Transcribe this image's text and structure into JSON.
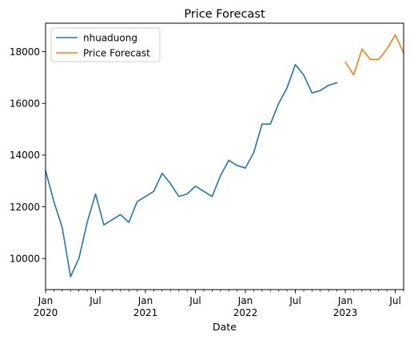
{
  "chart_data": {
    "type": "line",
    "title": "Price Forecast",
    "xlabel": "Date",
    "ylabel": "",
    "x_range": [
      "2020-01",
      "2023-08"
    ],
    "ylim": [
      8800,
      19100
    ],
    "grid": false,
    "legend_position": "top-left",
    "x_ticks": [
      {
        "date": "2020-01",
        "label": "Jan",
        "sublabel": "2020"
      },
      {
        "date": "2020-07",
        "label": "Jul",
        "sublabel": ""
      },
      {
        "date": "2021-01",
        "label": "Jan",
        "sublabel": "2021"
      },
      {
        "date": "2021-07",
        "label": "Jul",
        "sublabel": ""
      },
      {
        "date": "2022-01",
        "label": "Jan",
        "sublabel": "2022"
      },
      {
        "date": "2022-07",
        "label": "Jul",
        "sublabel": ""
      },
      {
        "date": "2023-01",
        "label": "Jan",
        "sublabel": "2023"
      },
      {
        "date": "2023-07",
        "label": "Jul",
        "sublabel": ""
      }
    ],
    "y_ticks": [
      10000,
      12000,
      14000,
      16000,
      18000
    ],
    "series": [
      {
        "name": "nhuaduong",
        "color": "#1f77b4",
        "points": [
          {
            "x": "2020-01",
            "y": 13400
          },
          {
            "x": "2020-02",
            "y": 12200
          },
          {
            "x": "2020-03",
            "y": 11200
          },
          {
            "x": "2020-04",
            "y": 9300
          },
          {
            "x": "2020-05",
            "y": 10000
          },
          {
            "x": "2020-06",
            "y": 11400
          },
          {
            "x": "2020-07",
            "y": 12500
          },
          {
            "x": "2020-08",
            "y": 11300
          },
          {
            "x": "2020-09",
            "y": 11500
          },
          {
            "x": "2020-10",
            "y": 11700
          },
          {
            "x": "2020-11",
            "y": 11400
          },
          {
            "x": "2020-12",
            "y": 12200
          },
          {
            "x": "2021-01",
            "y": 12400
          },
          {
            "x": "2021-02",
            "y": 12600
          },
          {
            "x": "2021-03",
            "y": 13300
          },
          {
            "x": "2021-04",
            "y": 12900
          },
          {
            "x": "2021-05",
            "y": 12400
          },
          {
            "x": "2021-06",
            "y": 12500
          },
          {
            "x": "2021-07",
            "y": 12800
          },
          {
            "x": "2021-08",
            "y": 12600
          },
          {
            "x": "2021-09",
            "y": 12400
          },
          {
            "x": "2021-10",
            "y": 13200
          },
          {
            "x": "2021-11",
            "y": 13800
          },
          {
            "x": "2021-12",
            "y": 13600
          },
          {
            "x": "2022-01",
            "y": 13500
          },
          {
            "x": "2022-02",
            "y": 14100
          },
          {
            "x": "2022-03",
            "y": 15200
          },
          {
            "x": "2022-04",
            "y": 15200
          },
          {
            "x": "2022-05",
            "y": 16000
          },
          {
            "x": "2022-06",
            "y": 16600
          },
          {
            "x": "2022-07",
            "y": 17500
          },
          {
            "x": "2022-08",
            "y": 17100
          },
          {
            "x": "2022-09",
            "y": 16400
          },
          {
            "x": "2022-10",
            "y": 16500
          },
          {
            "x": "2022-11",
            "y": 16700
          },
          {
            "x": "2022-12",
            "y": 16800
          }
        ]
      },
      {
        "name": "Price Forecast",
        "color": "#ff7f0e",
        "points": [
          {
            "x": "2023-01",
            "y": 17600
          },
          {
            "x": "2023-02",
            "y": 17100
          },
          {
            "x": "2023-03",
            "y": 18100
          },
          {
            "x": "2023-04",
            "y": 17700
          },
          {
            "x": "2023-05",
            "y": 17700
          },
          {
            "x": "2023-06",
            "y": 18100
          },
          {
            "x": "2023-07",
            "y": 18650
          },
          {
            "x": "2023-08",
            "y": 17950
          }
        ]
      }
    ]
  }
}
